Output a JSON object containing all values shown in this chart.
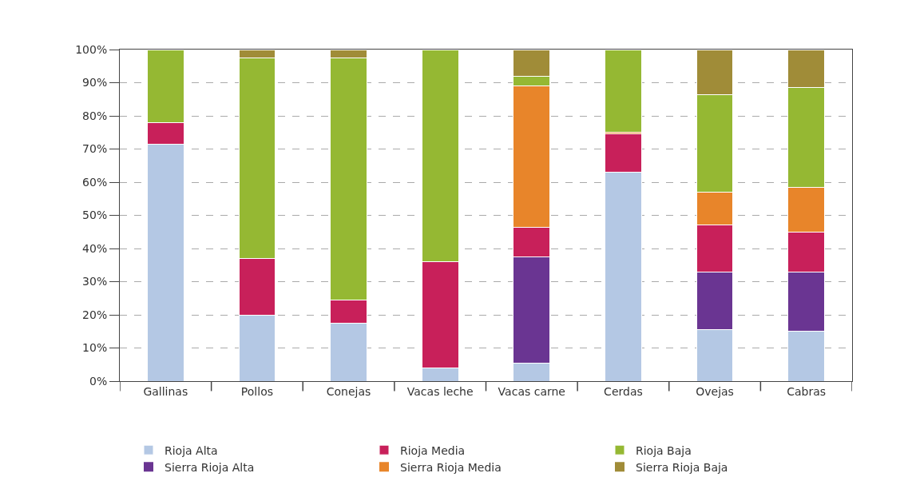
{
  "chart_data": {
    "type": "bar",
    "stacked": true,
    "categories": [
      "Gallinas",
      "Pollos",
      "Conejas",
      "Vacas leche",
      "Vacas carne",
      "Cerdas",
      "Ovejas",
      "Cabras"
    ],
    "series": [
      {
        "name": "Rioja Alta",
        "color": "#b4c8e4",
        "values": [
          71.5,
          20,
          17.5,
          4,
          5.5,
          63,
          15.5,
          15
        ]
      },
      {
        "name": "Sierra Rioja Alta",
        "color": "#6a3592",
        "values": [
          0,
          0,
          0,
          0,
          32,
          0,
          17.5,
          18
        ]
      },
      {
        "name": "Rioja Media",
        "color": "#c8205a",
        "values": [
          6.5,
          17,
          7,
          32,
          9,
          11.5,
          14,
          12
        ]
      },
      {
        "name": "Sierra Rioja Media",
        "color": "#e8852a",
        "values": [
          0,
          0,
          0,
          0,
          42.5,
          0.5,
          10,
          13.5
        ]
      },
      {
        "name": "Rioja Baja",
        "color": "#95b833",
        "values": [
          22,
          60.5,
          73,
          64,
          3,
          25,
          29.5,
          30
        ]
      },
      {
        "name": "Sierra Rioja Baja",
        "color": "#a08c38",
        "values": [
          0,
          2.5,
          2.5,
          0,
          8,
          0,
          13.5,
          11.5
        ]
      }
    ],
    "ylim": [
      0,
      100
    ],
    "yticks": [
      {
        "value": 0,
        "label": "0%"
      },
      {
        "value": 10,
        "label": "10%"
      },
      {
        "value": 20,
        "label": "20%"
      },
      {
        "value": 30,
        "label": "30%"
      },
      {
        "value": 40,
        "label": "40%"
      },
      {
        "value": 50,
        "label": "50%"
      },
      {
        "value": 60,
        "label": "60%"
      },
      {
        "value": 70,
        "label": "70%"
      },
      {
        "value": 80,
        "label": "80%"
      },
      {
        "value": 90,
        "label": "90%"
      },
      {
        "value": 100,
        "label": "100%"
      }
    ],
    "grid": "y",
    "legend": "bottom"
  }
}
